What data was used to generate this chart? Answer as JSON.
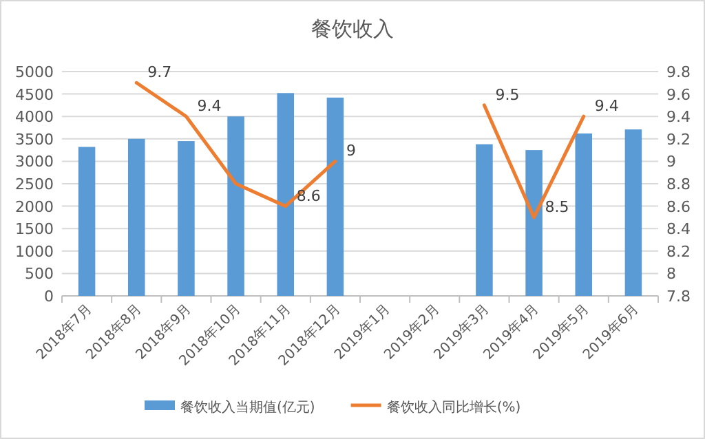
{
  "chart_data": {
    "type": "bar",
    "title": "餐饮收入",
    "categories": [
      "2018年7月",
      "2018年8月",
      "2018年9月",
      "2018年10月",
      "2018年11月",
      "2018年12月",
      "2019年1月",
      "2019年2月",
      "2019年3月",
      "2019年4月",
      "2019年5月",
      "2019年6月"
    ],
    "series": [
      {
        "name": "餐饮收入当期值(亿元)",
        "color": "#5b9bd5",
        "values": [
          3320,
          3500,
          3450,
          4000,
          4520,
          4420,
          null,
          null,
          3380,
          3250,
          3620,
          3710
        ]
      },
      {
        "name": "餐饮收入同比增长(%)",
        "type": "line",
        "axis": "y2",
        "color": "#ed7d31",
        "values": [
          null,
          9.7,
          9.4,
          8.8,
          8.6,
          9.0,
          null,
          null,
          9.5,
          8.5,
          9.4,
          null
        ],
        "value_labels": [
          null,
          "9.7",
          "9.4",
          null,
          "8.6",
          "9",
          null,
          null,
          "9.5",
          "8.5",
          "9.4",
          null
        ]
      }
    ],
    "ylim": [
      0,
      5000
    ],
    "yticks": [
      0,
      500,
      1000,
      1500,
      2000,
      2500,
      3000,
      3500,
      4000,
      4500,
      5000
    ],
    "y2lim": [
      7.8,
      9.8
    ],
    "y2ticks": [
      7.8,
      8,
      8.2,
      8.4,
      8.6,
      8.8,
      9,
      9.2,
      9.4,
      9.6,
      9.8
    ],
    "grid": "y",
    "legend": "bottom"
  }
}
